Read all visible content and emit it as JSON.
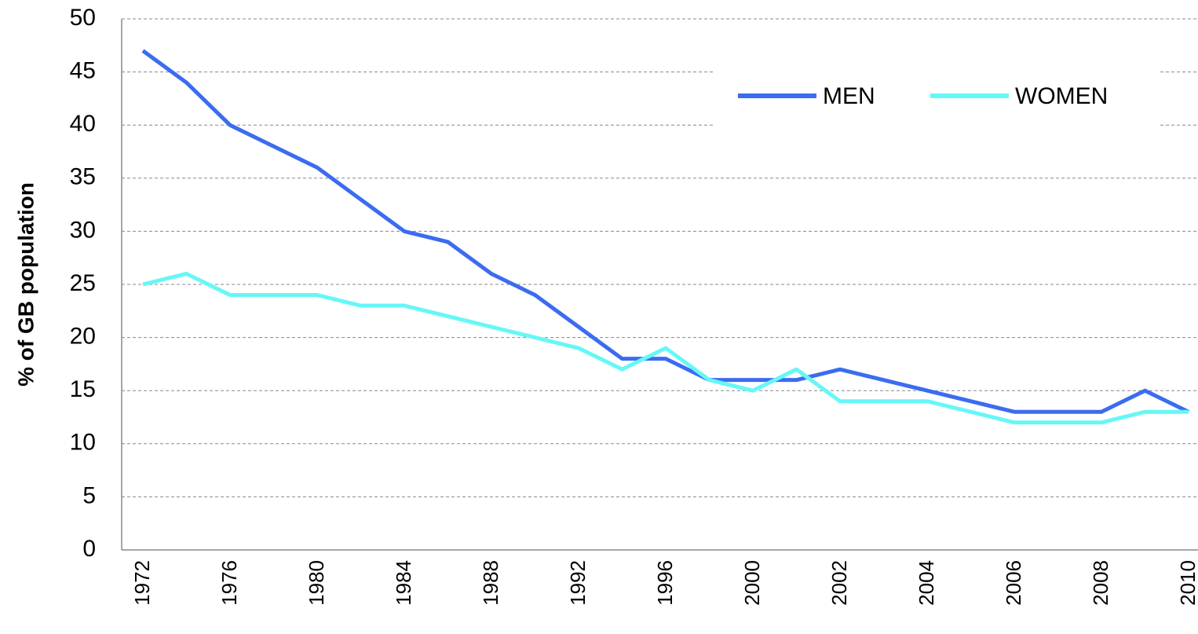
{
  "chart_data": {
    "type": "line",
    "y_label": "% of GB population",
    "categories": [
      "1972",
      null,
      "1976",
      null,
      "1980",
      null,
      "1984",
      null,
      "1988",
      null,
      "1992",
      null,
      "1996",
      null,
      "2000",
      null,
      "2002",
      null,
      "2004",
      null,
      "2006",
      null,
      "2008",
      null,
      "2010"
    ],
    "series": [
      {
        "name": "MEN",
        "color": "#3b6cf0",
        "values": [
          47,
          44,
          40,
          38,
          36,
          33,
          30,
          29,
          26,
          24,
          21,
          18,
          18,
          16,
          16,
          16,
          17,
          16,
          15,
          14,
          13,
          13,
          13,
          15,
          13
        ]
      },
      {
        "name": "WOMEN",
        "color": "#66f7f7",
        "values": [
          25,
          26,
          24,
          24,
          24,
          23,
          23,
          22,
          21,
          20,
          19,
          17,
          19,
          16,
          15,
          17,
          14,
          14,
          14,
          13,
          12,
          12,
          12,
          13,
          13
        ]
      }
    ],
    "ylim": [
      0,
      50
    ],
    "yticks": [
      0,
      5,
      10,
      15,
      20,
      25,
      30,
      35,
      40,
      45,
      50
    ],
    "grid": true,
    "legend": "top-right"
  }
}
